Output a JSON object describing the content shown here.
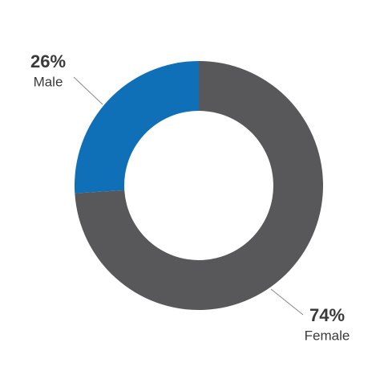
{
  "chart_data": {
    "type": "pie",
    "categories": [
      "Male",
      "Female"
    ],
    "values": [
      26,
      74
    ],
    "value_labels": [
      "26%",
      "74%"
    ],
    "colors": [
      "#0f70b7",
      "#58585a"
    ]
  }
}
